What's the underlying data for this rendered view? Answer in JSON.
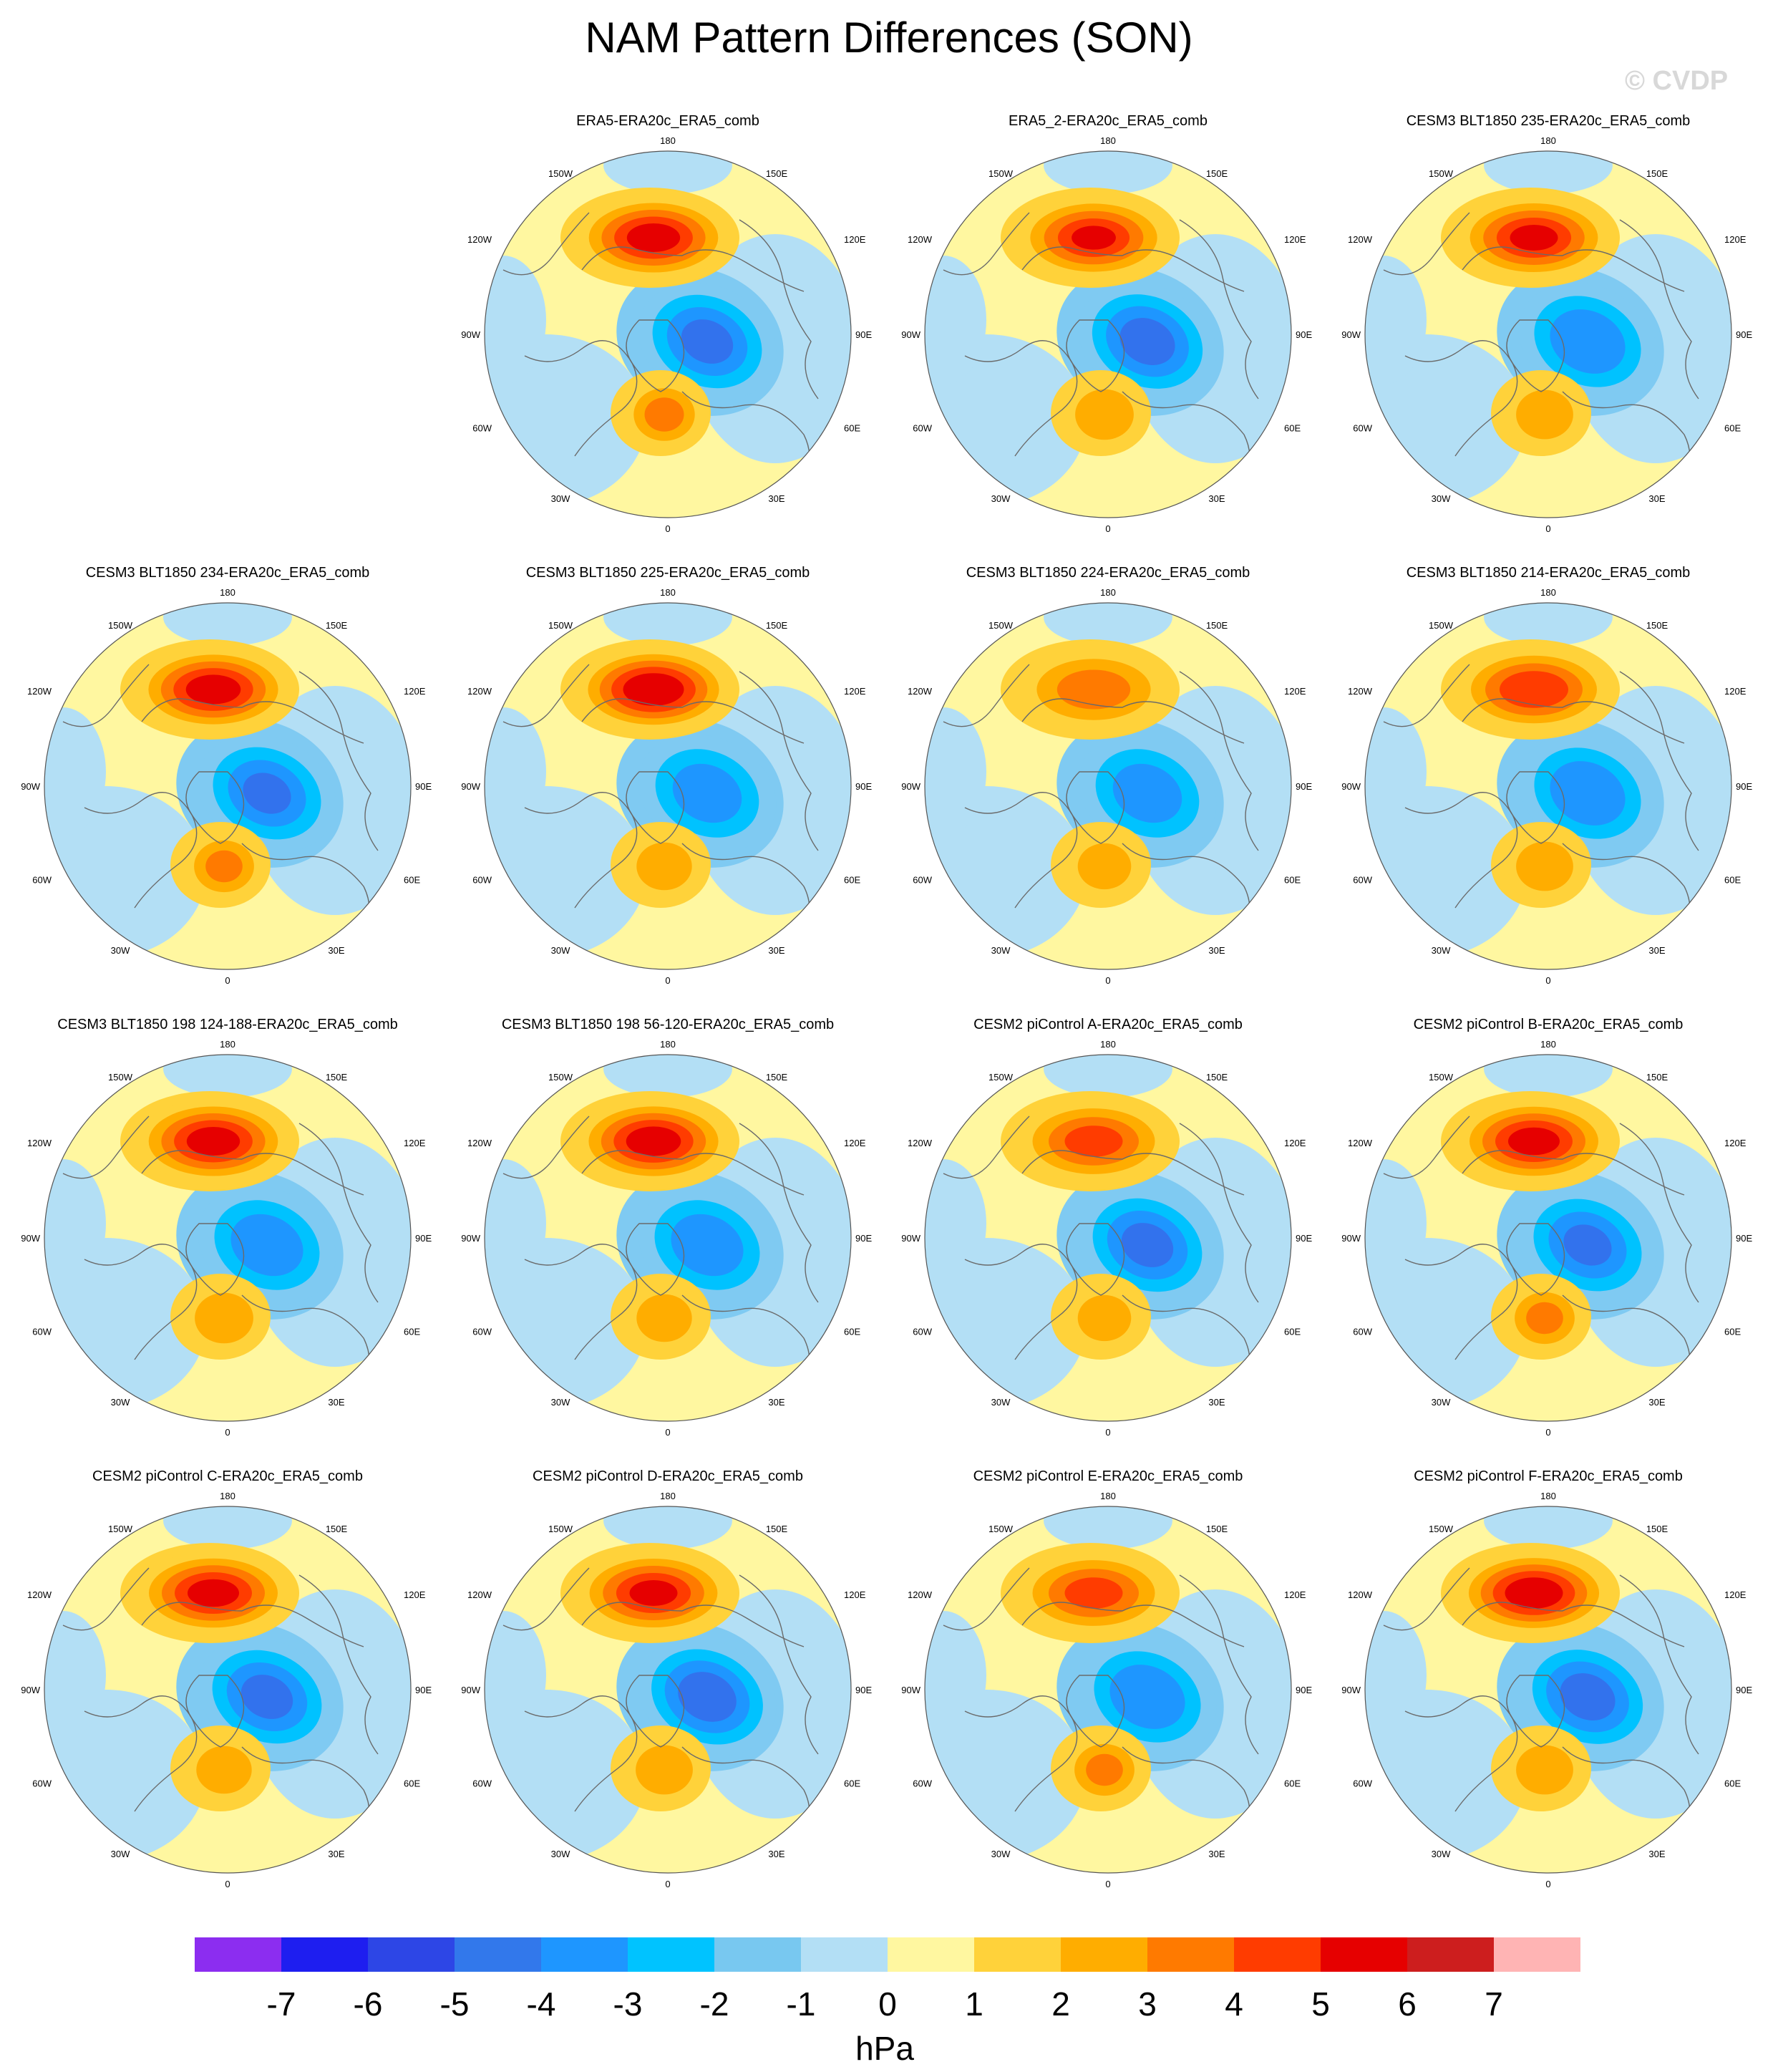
{
  "title": "NAM Pattern Differences (SON)",
  "watermark": "© CVDP",
  "colors": {
    "ocean": "#b3dff5",
    "neutral": "#fff7a0",
    "coast": "#6a6a6a",
    "pos_levels": [
      "#ffd23a",
      "#ffad00",
      "#ff7a00",
      "#ff3c00",
      "#e60000"
    ],
    "neg_levels": [
      "#7fcaf2",
      "#00c2ff",
      "#1e96ff",
      "#3272ed"
    ]
  },
  "map_labels": {
    "top": "180",
    "bottom": "0",
    "upper_left": "150W",
    "upper_right": "150E",
    "mid_upper_left": "120W",
    "mid_upper_right": "120E",
    "left": "90W",
    "right": "90E",
    "mid_lower_left": "60W",
    "mid_lower_right": "60E",
    "lower_left": "30W",
    "lower_right": "30E"
  },
  "panels": [
    {
      "title": "ERA5-ERA20c_ERA5_comb",
      "row": 0,
      "col": 1,
      "pac": 5.5,
      "atl": 3.2,
      "arc": -4.2,
      "aleut": 2
    },
    {
      "title": "ERA5_2-ERA20c_ERA5_comb",
      "row": 0,
      "col": 2,
      "pac": 5.0,
      "atl": 2.8,
      "arc": -4.4,
      "aleut": 2
    },
    {
      "title": "CESM3 BLT1850 235-ERA20c_ERA5_comb",
      "row": 0,
      "col": 3,
      "pac": 5.2,
      "atl": 2.6,
      "arc": -3.8,
      "aleut": 1
    },
    {
      "title": "CESM3 BLT1850 234-ERA20c_ERA5_comb",
      "row": 1,
      "col": 0,
      "pac": 5.6,
      "atl": 3.0,
      "arc": -4.0,
      "aleut": 1
    },
    {
      "title": "CESM3 BLT1850 225-ERA20c_ERA5_comb",
      "row": 1,
      "col": 1,
      "pac": 6.0,
      "atl": 2.4,
      "arc": -3.4,
      "aleut": 1
    },
    {
      "title": "CESM3 BLT1850 224-ERA20c_ERA5_comb",
      "row": 1,
      "col": 2,
      "pac": 3.2,
      "atl": 2.2,
      "arc": -3.4,
      "aleut": 1
    },
    {
      "title": "CESM3 BLT1850 214-ERA20c_ERA5_comb",
      "row": 1,
      "col": 3,
      "pac": 4.8,
      "atl": 2.6,
      "arc": -3.8,
      "aleut": 1
    },
    {
      "title": "CESM3 BLT1850 198 124-188-ERA20c_ERA5_comb",
      "row": 2,
      "col": 0,
      "pac": 5.5,
      "atl": 2.8,
      "arc": -3.6,
      "aleut": 1
    },
    {
      "title": "CESM3 BLT1850 198 56-120-ERA20c_ERA5_comb",
      "row": 2,
      "col": 1,
      "pac": 5.6,
      "atl": 2.4,
      "arc": -3.6,
      "aleut": 1
    },
    {
      "title": "CESM2 piControl A-ERA20c_ERA5_comb",
      "row": 2,
      "col": 2,
      "pac": 4.2,
      "atl": 2.2,
      "arc": -4.2,
      "aleut": 1
    },
    {
      "title": "CESM2 piControl B-ERA20c_ERA5_comb",
      "row": 2,
      "col": 3,
      "pac": 5.4,
      "atl": 3.0,
      "arc": -4.0,
      "aleut": 1
    },
    {
      "title": "CESM2 piControl C-ERA20c_ERA5_comb",
      "row": 3,
      "col": 0,
      "pac": 5.4,
      "atl": 2.4,
      "arc": -4.2,
      "aleut": 1
    },
    {
      "title": "CESM2 piControl D-ERA20c_ERA5_comb",
      "row": 3,
      "col": 1,
      "pac": 5.2,
      "atl": 2.6,
      "arc": -4.6,
      "aleut": 1
    },
    {
      "title": "CESM2 piControl E-ERA20c_ERA5_comb",
      "row": 3,
      "col": 2,
      "pac": 4.2,
      "atl": 3.0,
      "arc": -3.8,
      "aleut": 1
    },
    {
      "title": "CESM2 piControl F-ERA20c_ERA5_comb",
      "row": 3,
      "col": 3,
      "pac": 5.8,
      "atl": 2.6,
      "arc": -4.4,
      "aleut": 1
    }
  ],
  "colorbar": {
    "colors": [
      "#8c2df0",
      "#1e1ef0",
      "#2d46e6",
      "#3278eb",
      "#1e96ff",
      "#00c3ff",
      "#78c8f0",
      "#b3dff5",
      "#fff7a0",
      "#ffd23a",
      "#ffad00",
      "#ff7a00",
      "#ff3c00",
      "#e60000",
      "#cd1e1e",
      "#ffb4b4"
    ],
    "tick_labels": [
      "-7",
      "-6",
      "-5",
      "-4",
      "-3",
      "-2",
      "-1",
      "0",
      "1",
      "2",
      "3",
      "4",
      "5",
      "6",
      "7"
    ],
    "unit": "hPa"
  }
}
